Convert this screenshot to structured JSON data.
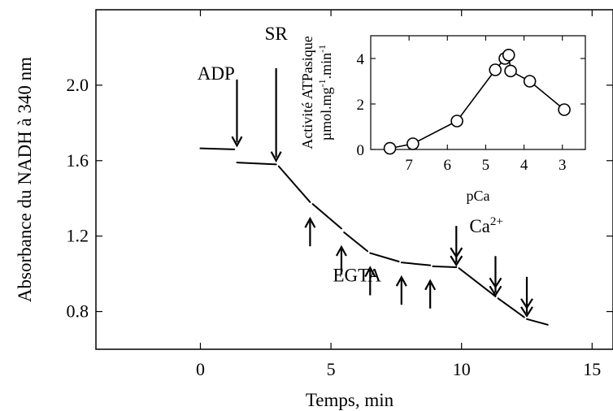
{
  "chart_data": [
    {
      "id": "main",
      "type": "line",
      "title": "",
      "xlabel": "Temps, min",
      "ylabel": "Absorbance du NADH à 340 nm",
      "xlim": [
        -4,
        15.8
      ],
      "ylim": [
        0.6,
        2.4
      ],
      "xticks": [
        0,
        5,
        10,
        15
      ],
      "xtick_labels": [
        "0",
        "5",
        "10",
        "15"
      ],
      "yticks": [
        0.8,
        1.2,
        1.6,
        2.0
      ],
      "ytick_labels": [
        "0.8",
        "1.2",
        "1.6",
        "2.0"
      ],
      "grid": false,
      "segments": [
        [
          [
            0.0,
            1.665
          ],
          [
            1.3,
            1.66
          ]
        ],
        [
          [
            1.4,
            1.59
          ],
          [
            2.9,
            1.58
          ]
        ],
        [
          [
            3.0,
            1.57
          ],
          [
            4.2,
            1.38
          ]
        ],
        [
          [
            4.3,
            1.37
          ],
          [
            5.4,
            1.24
          ]
        ],
        [
          [
            5.5,
            1.22
          ],
          [
            6.4,
            1.12
          ]
        ],
        [
          [
            6.5,
            1.11
          ],
          [
            7.6,
            1.065
          ]
        ],
        [
          [
            7.7,
            1.06
          ],
          [
            8.8,
            1.045
          ]
        ],
        [
          [
            8.9,
            1.04
          ],
          [
            9.8,
            1.035
          ]
        ],
        [
          [
            9.9,
            1.03
          ],
          [
            11.3,
            0.88
          ]
        ],
        [
          [
            11.4,
            0.87
          ],
          [
            12.4,
            0.77
          ]
        ],
        [
          [
            12.5,
            0.76
          ],
          [
            13.3,
            0.73
          ]
        ]
      ],
      "annotations": {
        "adp": {
          "label": "ADP",
          "arrow_x": 1.4,
          "arrow_from": 2.03,
          "arrow_to": 1.68,
          "label_x": 0.6,
          "label_y": 2.03
        },
        "sr": {
          "label": "SR",
          "arrow_x": 2.9,
          "arrow_from": 2.09,
          "arrow_to": 1.6,
          "label_x": 2.9,
          "label_y": 2.24
        },
        "egta": {
          "label": "EGTA",
          "label_x": 6.0,
          "label_y": 0.96,
          "arrows_up": [
            4.2,
            5.4,
            6.5,
            7.7,
            8.8
          ]
        },
        "ca": {
          "label": "Ca",
          "superscript": "2+",
          "label_x": 10.3,
          "label_y": 1.22,
          "arrows_down": [
            9.8,
            11.3,
            12.5
          ]
        }
      }
    },
    {
      "id": "inset",
      "type": "scatter",
      "title": "",
      "xlabel": "pCa",
      "ylabel_line1": "Activité ATPasique",
      "ylabel_line2": "µmol.mg",
      "ylabel_line2_sup1": "-1",
      "ylabel_line2_mid": ".min",
      "ylabel_line2_sup2": "-1",
      "xaxis_reversed": true,
      "xlim": [
        8.0,
        2.4
      ],
      "ylim": [
        0,
        5.0
      ],
      "xticks": [
        7,
        6,
        5,
        4,
        3
      ],
      "xtick_labels": [
        "7",
        "6",
        "5",
        "4",
        "3"
      ],
      "yticks": [
        0,
        2,
        4
      ],
      "ytick_labels": [
        "0",
        "2",
        "4"
      ],
      "grid": false,
      "points": [
        {
          "x": 7.5,
          "y": 0.05
        },
        {
          "x": 6.9,
          "y": 0.25
        },
        {
          "x": 5.75,
          "y": 1.25
        },
        {
          "x": 4.75,
          "y": 3.5
        },
        {
          "x": 4.5,
          "y": 4.0
        },
        {
          "x": 4.4,
          "y": 4.15
        },
        {
          "x": 4.35,
          "y": 3.45
        },
        {
          "x": 3.85,
          "y": 3.0
        },
        {
          "x": 2.95,
          "y": 1.75
        }
      ]
    }
  ]
}
